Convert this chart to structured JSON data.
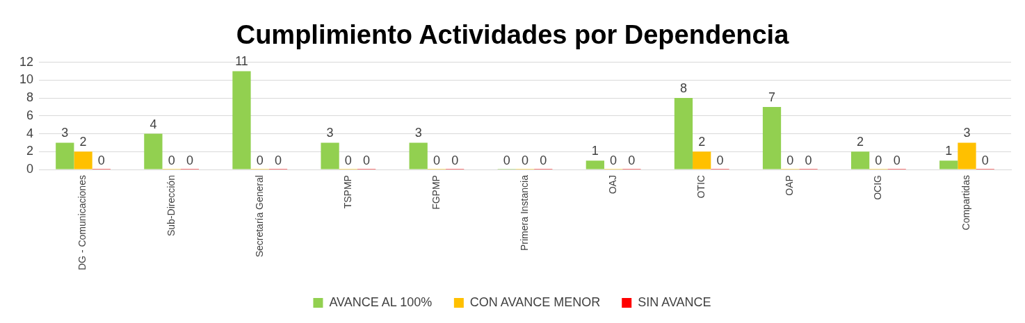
{
  "chart_data": {
    "type": "bar",
    "title": "Cumplimiento Actividades por Dependencia",
    "categories": [
      "DG - Comunicaciones",
      "Sub-Dirección",
      "Secretaría General",
      "TSPMP",
      "FGPMP",
      "Primera Instancia",
      "OAJ",
      "OTIC",
      "OAP",
      "OCIG",
      "Compartidas"
    ],
    "series": [
      {
        "name": "AVANCE AL 100%",
        "color": "#92d050",
        "values": [
          3,
          4,
          11,
          3,
          3,
          0,
          1,
          8,
          7,
          2,
          1
        ]
      },
      {
        "name": "CON AVANCE MENOR",
        "color": "#ffc000",
        "values": [
          2,
          0,
          0,
          0,
          0,
          0,
          0,
          2,
          0,
          0,
          3
        ]
      },
      {
        "name": "SIN AVANCE",
        "color": "#ff0000",
        "values": [
          0,
          0,
          0,
          0,
          0,
          0,
          0,
          0,
          0,
          0,
          0
        ]
      }
    ],
    "ylim": [
      0,
      12
    ],
    "yticks": [
      0,
      2,
      4,
      6,
      8,
      10,
      12
    ],
    "grid": "y",
    "legend": "bottom",
    "data_labels": true
  }
}
